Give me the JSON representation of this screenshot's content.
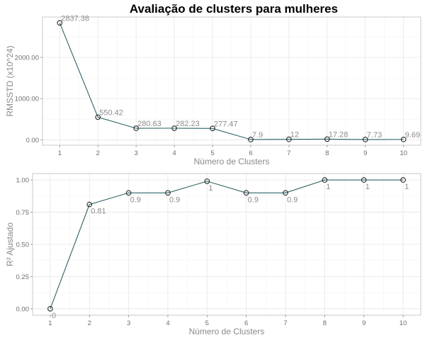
{
  "title": "Avaliação de clusters para mulheres",
  "colors": {
    "line": "#2f6466",
    "grid_major": "#e6e6e6",
    "grid_minor": "#f3f3f3",
    "panel_border": "#bdbdbd",
    "text": "#8a8a8a"
  },
  "chart_data": [
    {
      "type": "line",
      "x": [
        1,
        2,
        3,
        4,
        5,
        6,
        7,
        8,
        9,
        10
      ],
      "values": [
        2837.38,
        550.42,
        280.63,
        282.23,
        277.47,
        7.9,
        12,
        17.28,
        7.73,
        9.69
      ],
      "data_labels": [
        "2837.38",
        "550.42",
        "280.63",
        "282.23",
        "277.47",
        "7.9",
        "12",
        "17.28",
        "7.73",
        "9.69"
      ],
      "xlabel": "Número de Clusters",
      "ylabel": "RMSSTD (x10^24)",
      "yticks": [
        "0.00",
        "1000.00",
        "2000.00"
      ],
      "ytick_values": [
        0,
        1000,
        2000
      ],
      "xticks": [
        "1",
        "2",
        "3",
        "4",
        "5",
        "6",
        "7",
        "8",
        "9",
        "10"
      ],
      "ylim": [
        -130,
        2980
      ],
      "xlim": [
        0.55,
        10.45
      ],
      "grid": true,
      "marker": "open-circle",
      "label_position": "above-right"
    },
    {
      "type": "line",
      "x": [
        1,
        2,
        3,
        4,
        5,
        6,
        7,
        8,
        9,
        10
      ],
      "values": [
        0,
        0.81,
        0.9,
        0.9,
        0.99,
        0.9,
        0.9,
        1,
        1,
        1
      ],
      "data_labels": [
        "0",
        "0.81",
        "0.9",
        "0.9",
        "1",
        "0.9",
        "0.9",
        "1",
        "1",
        "1"
      ],
      "xlabel": "Número de Clusters",
      "ylabel": "R² Ajustado",
      "yticks": [
        "0.00",
        "0.25",
        "0.50",
        "0.75",
        "1.00"
      ],
      "ytick_values": [
        0,
        0.25,
        0.5,
        0.75,
        1
      ],
      "xticks": [
        "1",
        "2",
        "3",
        "4",
        "5",
        "6",
        "7",
        "8",
        "9",
        "10"
      ],
      "ylim": [
        -0.05,
        1.05
      ],
      "xlim": [
        0.55,
        10.45
      ],
      "grid": true,
      "marker": "open-circle",
      "label_position": "below-right"
    }
  ]
}
